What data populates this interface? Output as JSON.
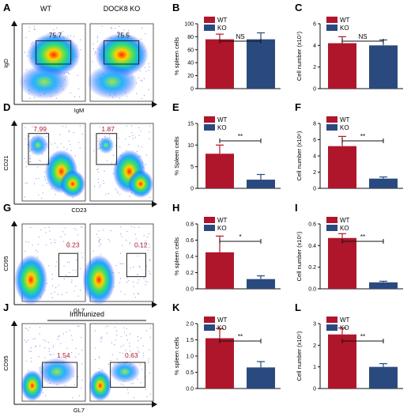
{
  "colors": {
    "wt": "#b0162b",
    "ko": "#2a4a7f",
    "gate_pct": "#b0162b"
  },
  "headers": {
    "wt": "WT",
    "ko": "DOCK8 KO"
  },
  "flow_rows": [
    {
      "panel": "A",
      "ylabel": "IgD",
      "xlabel": "IgM",
      "wt_pct": "75.7",
      "ko_pct": "75.5",
      "pct_color": "black",
      "top_label": ""
    },
    {
      "panel": "D",
      "ylabel": "CD21",
      "xlabel": "CD23",
      "wt_pct": "7.99",
      "ko_pct": "1.87",
      "pct_color": "red",
      "top_label": ""
    },
    {
      "panel": "G",
      "ylabel": "CD95",
      "xlabel": "GL7",
      "wt_pct": "0.23",
      "ko_pct": "0.12",
      "pct_color": "red",
      "top_label": ""
    },
    {
      "panel": "J",
      "ylabel": "CD95",
      "xlabel": "GL7",
      "wt_pct": "1.54",
      "ko_pct": "0.63",
      "pct_color": "red",
      "top_label": "Immunized"
    }
  ],
  "chart_data": [
    {
      "panel": "B",
      "type": "bar",
      "categories": [
        "WT",
        "KO"
      ],
      "values": [
        76,
        76
      ],
      "errors": [
        8,
        10
      ],
      "ylabel": "% spleen cells",
      "ylim": [
        0,
        100
      ],
      "yticks": [
        "0",
        "20",
        "40",
        "60",
        "80",
        "100"
      ],
      "significance": "NS",
      "legend": [
        "WT",
        "KO"
      ]
    },
    {
      "panel": "C",
      "type": "bar",
      "categories": [
        "WT",
        "KO"
      ],
      "values": [
        4.2,
        4.0
      ],
      "errors": [
        0.6,
        0.5
      ],
      "ylabel": "Cell number (x10⁷)",
      "ylim": [
        0,
        6
      ],
      "yticks": [
        "0",
        "2",
        "4",
        "6"
      ],
      "significance": "NS",
      "legend": [
        "WT",
        "KO"
      ]
    },
    {
      "panel": "E",
      "type": "bar",
      "categories": [
        "WT",
        "KO"
      ],
      "values": [
        8.0,
        2.0
      ],
      "errors": [
        2.0,
        1.2
      ],
      "ylabel": "% Spleen cells",
      "ylim": [
        0,
        15
      ],
      "yticks": [
        "0",
        "5",
        "10",
        "15"
      ],
      "significance": "**",
      "legend": [
        "WT",
        "KO"
      ]
    },
    {
      "panel": "F",
      "type": "bar",
      "categories": [
        "WT",
        "KO"
      ],
      "values": [
        5.2,
        1.2
      ],
      "errors": [
        1.2,
        0.2
      ],
      "ylabel": "Cell number (x10⁶)",
      "ylim": [
        0,
        8
      ],
      "yticks": [
        "0",
        "2",
        "4",
        "6",
        "8"
      ],
      "significance": "**",
      "legend": [
        "WT",
        "KO"
      ]
    },
    {
      "panel": "H",
      "type": "bar",
      "categories": [
        "WT",
        "KO"
      ],
      "values": [
        0.45,
        0.12
      ],
      "errors": [
        0.2,
        0.04
      ],
      "ylabel": "% spleen cells",
      "ylim": [
        0,
        0.8
      ],
      "yticks": [
        "0.0",
        "0.2",
        "0.4",
        "0.6",
        "0.8"
      ],
      "significance": "*",
      "legend": [
        "WT",
        "KO"
      ]
    },
    {
      "panel": "I",
      "type": "bar",
      "categories": [
        "WT",
        "KO"
      ],
      "values": [
        0.47,
        0.06
      ],
      "errors": [
        0.04,
        0.01
      ],
      "ylabel": "Cell number (x10⁵)",
      "ylim": [
        0,
        0.6
      ],
      "yticks": [
        "0.0",
        "0.2",
        "0.4",
        "0.6"
      ],
      "significance": "**",
      "legend": [
        "WT",
        "KO"
      ]
    },
    {
      "panel": "K",
      "type": "bar",
      "categories": [
        "WT",
        "KO"
      ],
      "values": [
        1.55,
        0.65
      ],
      "errors": [
        0.3,
        0.18
      ],
      "ylabel": "% spleen cells",
      "ylim": [
        0,
        2.0
      ],
      "yticks": [
        "0.0",
        "0.5",
        "1.0",
        "1.5",
        "2.0"
      ],
      "significance": "**",
      "legend": [
        "WT",
        "KO"
      ]
    },
    {
      "panel": "L",
      "type": "bar",
      "categories": [
        "WT",
        "KO"
      ],
      "values": [
        2.5,
        1.0
      ],
      "errors": [
        0.3,
        0.15
      ],
      "ylabel": "Cell number (x10⁵)",
      "ylim": [
        0,
        3
      ],
      "yticks": [
        "0",
        "1",
        "2",
        "3"
      ],
      "significance": "**",
      "legend": [
        "WT",
        "KO"
      ]
    }
  ]
}
